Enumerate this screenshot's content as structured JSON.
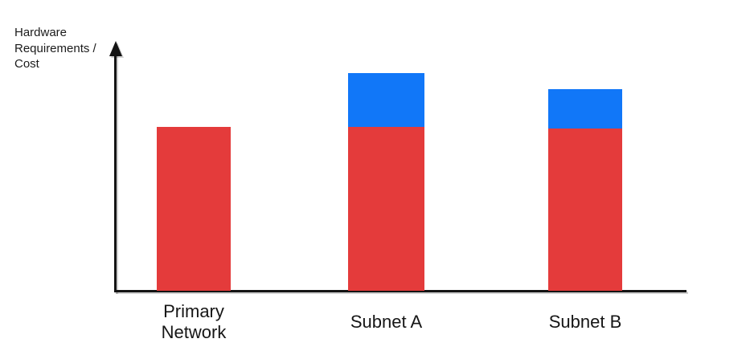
{
  "page": {
    "background": "#ffffff"
  },
  "chart_data": {
    "type": "bar",
    "stacked": true,
    "title": "",
    "xlabel": "",
    "ylabel": "Hardware\nRequirements /\nCost",
    "categories": [
      "Primary Network",
      "Subnet A",
      "Subnet B"
    ],
    "series": [
      {
        "name": "red",
        "color": "#E43B3B",
        "values": [
          100,
          100,
          99
        ]
      },
      {
        "name": "blue",
        "color": "#1177F8",
        "values": [
          0,
          33,
          24
        ]
      }
    ],
    "axis_has_numeric_scale": false,
    "y_axis_arrow": true,
    "axis_color": "#141414",
    "grid": false,
    "legend": "none"
  }
}
